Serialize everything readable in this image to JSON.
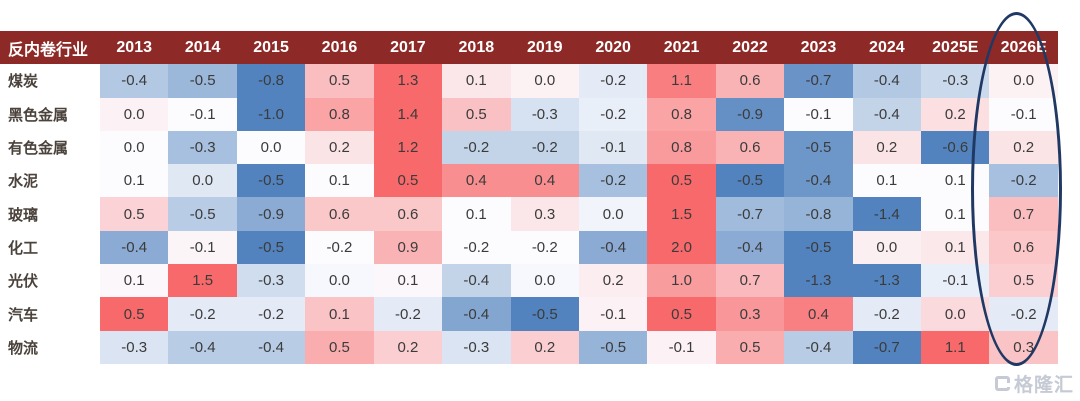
{
  "corner_label": "反内卷行业",
  "chart_data": {
    "type": "heatmap",
    "columns": [
      "2013",
      "2014",
      "2015",
      "2016",
      "2017",
      "2018",
      "2019",
      "2020",
      "2021",
      "2022",
      "2023",
      "2024",
      "2025E",
      "2026E"
    ],
    "rows": [
      {
        "label": "煤炭",
        "values": [
          -0.4,
          -0.5,
          -0.8,
          0.5,
          1.3,
          0.1,
          0.0,
          -0.2,
          1.1,
          0.6,
          -0.7,
          -0.4,
          -0.3,
          0.0
        ]
      },
      {
        "label": "黑色金属",
        "values": [
          0.0,
          -0.1,
          -1.0,
          0.8,
          1.4,
          0.5,
          -0.3,
          -0.2,
          0.8,
          -0.9,
          -0.1,
          -0.4,
          0.2,
          -0.1
        ]
      },
      {
        "label": "有色金属",
        "values": [
          0.0,
          -0.3,
          0.0,
          0.2,
          1.2,
          -0.2,
          -0.2,
          -0.1,
          0.8,
          0.6,
          -0.5,
          0.2,
          -0.6,
          0.2
        ]
      },
      {
        "label": "水泥",
        "values": [
          0.1,
          0.0,
          -0.5,
          0.1,
          0.5,
          0.4,
          0.4,
          -0.2,
          0.5,
          -0.5,
          -0.4,
          0.1,
          0.1,
          -0.2
        ]
      },
      {
        "label": "玻璃",
        "values": [
          0.5,
          -0.5,
          -0.9,
          0.6,
          0.6,
          0.1,
          0.3,
          0.0,
          1.5,
          -0.7,
          -0.8,
          -1.4,
          0.1,
          0.7
        ]
      },
      {
        "label": "化工",
        "values": [
          -0.4,
          -0.1,
          -0.5,
          -0.2,
          0.9,
          -0.2,
          -0.2,
          -0.4,
          2.0,
          -0.4,
          -0.5,
          0.0,
          0.1,
          0.6
        ]
      },
      {
        "label": "光伏",
        "values": [
          0.1,
          1.5,
          -0.3,
          0.0,
          0.1,
          -0.4,
          0.0,
          0.2,
          1.0,
          0.7,
          -1.3,
          -1.3,
          -0.1,
          0.5
        ]
      },
      {
        "label": "汽车",
        "values": [
          0.5,
          -0.2,
          -0.2,
          0.1,
          -0.2,
          -0.4,
          -0.5,
          -0.1,
          0.5,
          0.3,
          0.4,
          -0.2,
          0.0,
          -0.2
        ]
      },
      {
        "label": "物流",
        "values": [
          -0.3,
          -0.4,
          -0.4,
          0.5,
          0.2,
          -0.3,
          0.2,
          -0.5,
          -0.1,
          0.5,
          -0.4,
          -0.7,
          1.1,
          0.3
        ]
      }
    ],
    "color_scale": {
      "mode": "per-row 3-color scale: min / median / max",
      "min_color": "#5283BE",
      "mid_color": "#FCFCFF",
      "max_color": "#F8696B"
    },
    "value_format": "0.0",
    "annotation": {
      "type": "ellipse",
      "target_column": "2026E",
      "color": "#1F3864"
    }
  },
  "colors": {
    "header_bg": "#8D2A27",
    "header_text": "#FFFFFF",
    "row_label_text": "#4A423B",
    "value_text": "#3B3B3B"
  },
  "watermark": {
    "brand": "格隆汇",
    "icon": "gelonghui-logo"
  }
}
